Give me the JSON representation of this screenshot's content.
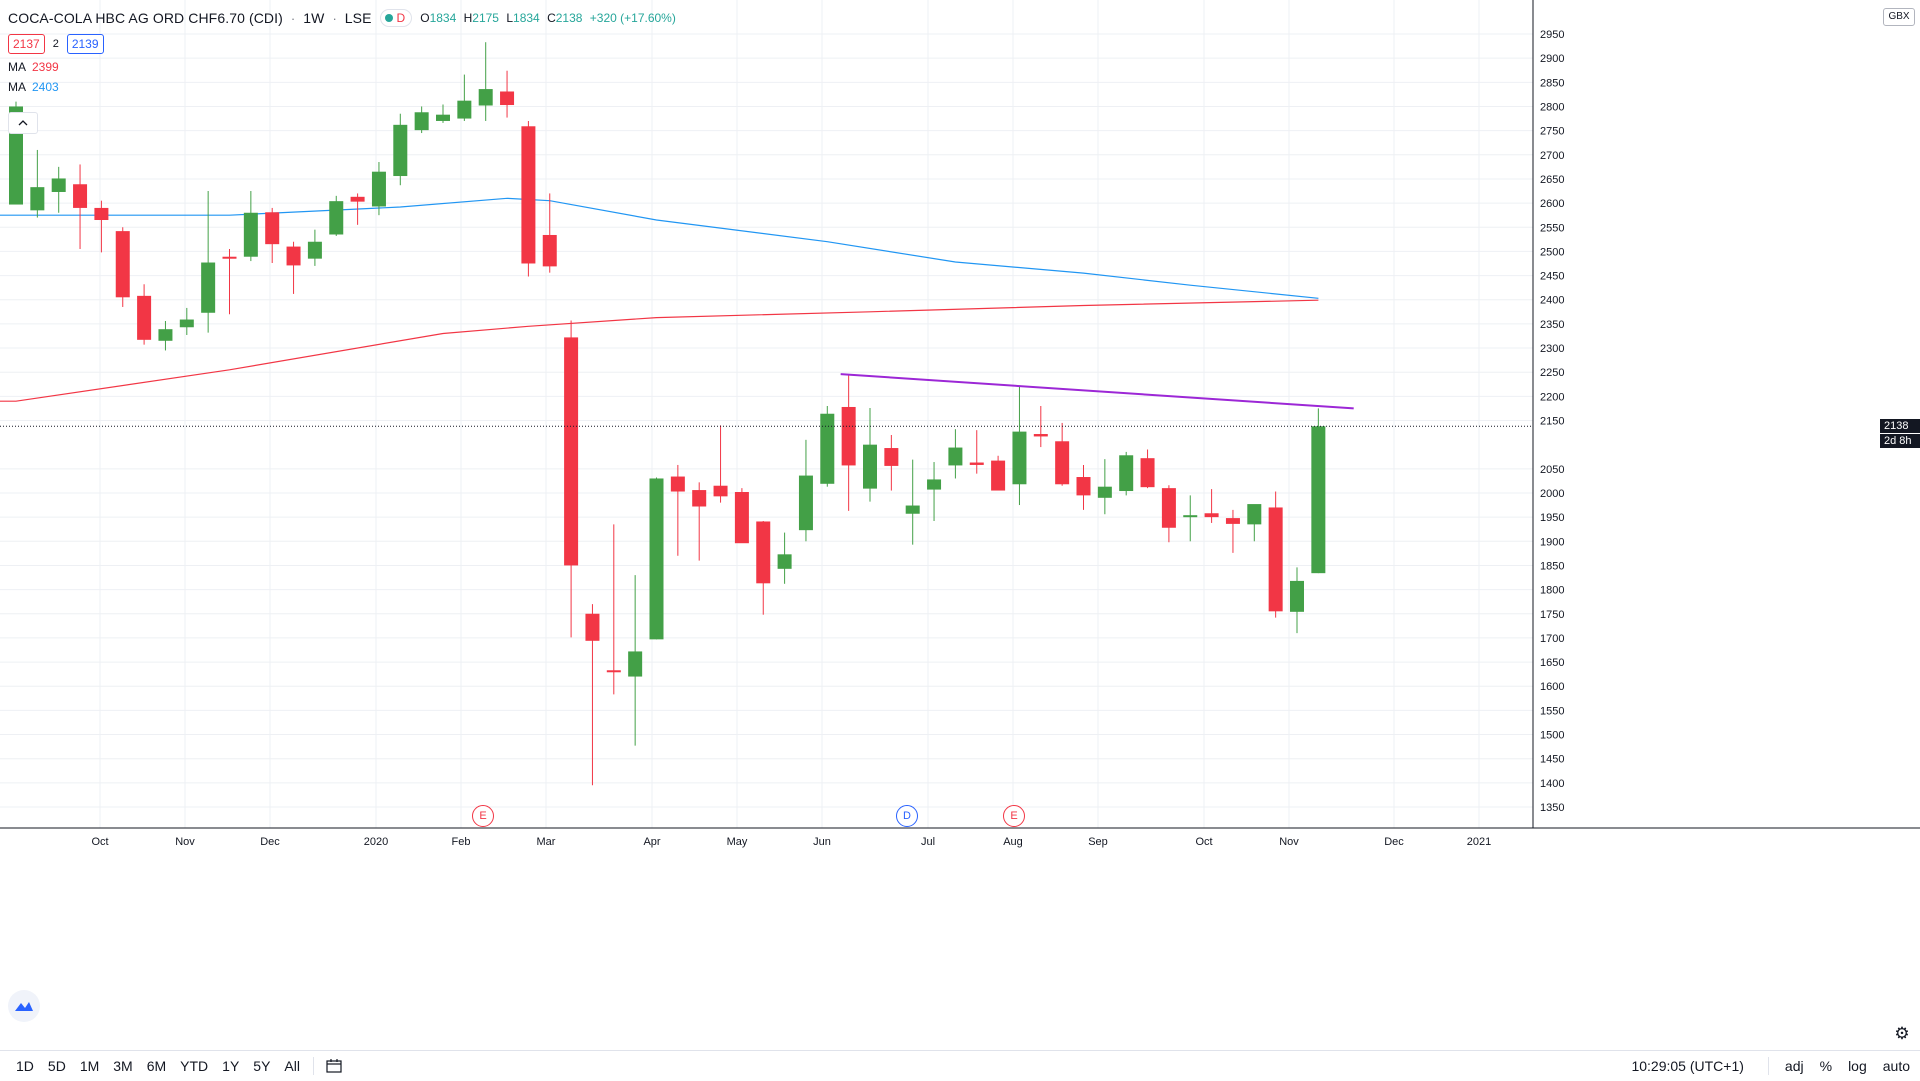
{
  "header": {
    "symbol_title": "COCA-COLA HBC AG ORD CHF6.70 (CDI)",
    "interval": "1W",
    "exchange": "LSE",
    "status_letter": "D",
    "ohlc": {
      "o_label": "O",
      "o_value": "1834",
      "h_label": "H",
      "h_value": "2175",
      "l_label": "L",
      "l_value": "1834",
      "c_label": "C",
      "c_value": "2138",
      "change": "+320 (+17.60%)"
    },
    "bid": "2137",
    "spread": "2",
    "ask": "2139",
    "ma1": {
      "label": "MA",
      "value": "2399",
      "color": "#f23645"
    },
    "ma2": {
      "label": "MA",
      "value": "2403",
      "color": "#2196f3"
    },
    "collapse_glyph": "^"
  },
  "price_axis": {
    "currency": "GBX",
    "last_price_label": "2138",
    "countdown_label": "2d 8h",
    "ticks": [
      "2950",
      "2900",
      "2850",
      "2800",
      "2750",
      "2700",
      "2650",
      "2600",
      "2550",
      "2500",
      "2450",
      "2400",
      "2350",
      "2300",
      "2250",
      "2200",
      "2150",
      "2050",
      "2000",
      "1950",
      "1900",
      "1850",
      "1800",
      "1750",
      "1700",
      "1650",
      "1600",
      "1550",
      "1500",
      "1450",
      "1400",
      "1350"
    ]
  },
  "time_axis": {
    "labels": [
      "Oct",
      "Nov",
      "Dec",
      "2020",
      "Feb",
      "Mar",
      "Apr",
      "May",
      "Jun",
      "Jul",
      "Aug",
      "Sep",
      "Oct",
      "Nov",
      "Dec",
      "2021"
    ]
  },
  "events": [
    {
      "letter": "E",
      "kind": "earnings"
    },
    {
      "letter": "D",
      "kind": "dividend"
    },
    {
      "letter": "E",
      "kind": "earnings"
    }
  ],
  "toolbar": {
    "timeframes": [
      "1D",
      "5D",
      "1M",
      "3M",
      "6M",
      "YTD",
      "1Y",
      "5Y",
      "All"
    ],
    "clock": "10:29:05 (UTC+1)",
    "adj": "adj",
    "percent": "%",
    "log": "log",
    "auto": "auto"
  },
  "colors": {
    "up": "#43a047",
    "down": "#f23645",
    "ma_red": "#f23645",
    "ma_blue": "#2196f3",
    "trendline": "#9c27d6",
    "grid": "#eef0f4"
  },
  "chart_data": {
    "type": "candlestick",
    "title": "COCA-COLA HBC AG ORD CHF6.70 (CDI)",
    "interval": "1W",
    "ylim": [
      1330,
      2960
    ],
    "y_unit": "GBX",
    "candles": [
      {
        "o": 2597,
        "h": 2810,
        "l": 2597,
        "c": 2800
      },
      {
        "o": 2585,
        "h": 2710,
        "l": 2570,
        "c": 2633
      },
      {
        "o": 2623,
        "h": 2675,
        "l": 2580,
        "c": 2651
      },
      {
        "o": 2639,
        "h": 2680,
        "l": 2505,
        "c": 2590
      },
      {
        "o": 2590,
        "h": 2605,
        "l": 2498,
        "c": 2565
      },
      {
        "o": 2542,
        "h": 2550,
        "l": 2385,
        "c": 2405
      },
      {
        "o": 2408,
        "h": 2432,
        "l": 2307,
        "c": 2317
      },
      {
        "o": 2315,
        "h": 2356,
        "l": 2295,
        "c": 2339
      },
      {
        "o": 2343,
        "h": 2383,
        "l": 2327,
        "c": 2359
      },
      {
        "o": 2373,
        "h": 2625,
        "l": 2332,
        "c": 2477
      },
      {
        "o": 2489,
        "h": 2505,
        "l": 2370,
        "c": 2485
      },
      {
        "o": 2489,
        "h": 2625,
        "l": 2480,
        "c": 2580
      },
      {
        "o": 2581,
        "h": 2590,
        "l": 2476,
        "c": 2515
      },
      {
        "o": 2510,
        "h": 2520,
        "l": 2412,
        "c": 2471
      },
      {
        "o": 2485,
        "h": 2545,
        "l": 2470,
        "c": 2520
      },
      {
        "o": 2535,
        "h": 2615,
        "l": 2532,
        "c": 2604
      },
      {
        "o": 2613,
        "h": 2620,
        "l": 2555,
        "c": 2603
      },
      {
        "o": 2593,
        "h": 2685,
        "l": 2575,
        "c": 2665
      },
      {
        "o": 2656,
        "h": 2785,
        "l": 2637,
        "c": 2762
      },
      {
        "o": 2751,
        "h": 2800,
        "l": 2745,
        "c": 2788
      },
      {
        "o": 2770,
        "h": 2804,
        "l": 2766,
        "c": 2783
      },
      {
        "o": 2775,
        "h": 2866,
        "l": 2770,
        "c": 2812
      },
      {
        "o": 2802,
        "h": 2933,
        "l": 2770,
        "c": 2836
      },
      {
        "o": 2831,
        "h": 2874,
        "l": 2777,
        "c": 2803
      },
      {
        "o": 2759,
        "h": 2770,
        "l": 2448,
        "c": 2475
      },
      {
        "o": 2534,
        "h": 2620,
        "l": 2456,
        "c": 2469
      },
      {
        "o": 2322,
        "h": 2357,
        "l": 1701,
        "c": 1850
      },
      {
        "o": 1750,
        "h": 1770,
        "l": 1395,
        "c": 1694
      },
      {
        "o": 1633,
        "h": 1935,
        "l": 1583,
        "c": 1630
      },
      {
        "o": 1620,
        "h": 1830,
        "l": 1477,
        "c": 1672
      },
      {
        "o": 1697,
        "h": 2032,
        "l": 1697,
        "c": 2030
      },
      {
        "o": 2034,
        "h": 2058,
        "l": 1870,
        "c": 2003
      },
      {
        "o": 2006,
        "h": 2022,
        "l": 1860,
        "c": 1972
      },
      {
        "o": 2015,
        "h": 2140,
        "l": 1980,
        "c": 1993
      },
      {
        "o": 2002,
        "h": 2010,
        "l": 1897,
        "c": 1896
      },
      {
        "o": 1941,
        "h": 1942,
        "l": 1748,
        "c": 1813
      },
      {
        "o": 1843,
        "h": 1918,
        "l": 1812,
        "c": 1873
      },
      {
        "o": 1923,
        "h": 2110,
        "l": 1900,
        "c": 2036
      },
      {
        "o": 2019,
        "h": 2180,
        "l": 2013,
        "c": 2164
      },
      {
        "o": 2178,
        "h": 2245,
        "l": 1963,
        "c": 2057
      },
      {
        "o": 2009,
        "h": 2176,
        "l": 1982,
        "c": 2100
      },
      {
        "o": 2093,
        "h": 2120,
        "l": 2005,
        "c": 2056
      },
      {
        "o": 1957,
        "h": 2069,
        "l": 1893,
        "c": 1974
      },
      {
        "o": 2007,
        "h": 2064,
        "l": 1942,
        "c": 2028
      },
      {
        "o": 2057,
        "h": 2132,
        "l": 2030,
        "c": 2094
      },
      {
        "o": 2063,
        "h": 2130,
        "l": 2040,
        "c": 2058
      },
      {
        "o": 2067,
        "h": 2077,
        "l": 2018,
        "c": 2005
      },
      {
        "o": 2018,
        "h": 2222,
        "l": 1975,
        "c": 2127
      },
      {
        "o": 2122,
        "h": 2180,
        "l": 2095,
        "c": 2117
      },
      {
        "o": 2107,
        "h": 2145,
        "l": 2015,
        "c": 2018
      },
      {
        "o": 2033,
        "h": 2058,
        "l": 1965,
        "c": 1995
      },
      {
        "o": 1990,
        "h": 2070,
        "l": 1956,
        "c": 2013
      },
      {
        "o": 2004,
        "h": 2085,
        "l": 1995,
        "c": 2078
      },
      {
        "o": 2072,
        "h": 2090,
        "l": 2010,
        "c": 2012
      },
      {
        "o": 2010,
        "h": 2016,
        "l": 1898,
        "c": 1928
      },
      {
        "o": 1951,
        "h": 1995,
        "l": 1900,
        "c": 1954
      },
      {
        "o": 1958,
        "h": 2008,
        "l": 1938,
        "c": 1950
      },
      {
        "o": 1948,
        "h": 1965,
        "l": 1876,
        "c": 1936
      },
      {
        "o": 1935,
        "h": 1975,
        "l": 1900,
        "c": 1977
      },
      {
        "o": 1970,
        "h": 2003,
        "l": 1742,
        "c": 1755
      },
      {
        "o": 1754,
        "h": 1846,
        "l": 1710,
        "c": 1818
      },
      {
        "o": 1834,
        "h": 2175,
        "l": 1834,
        "c": 2138
      }
    ],
    "ma_slow": {
      "name": "MA",
      "last": 2399,
      "points": [
        [
          0,
          2190
        ],
        [
          10,
          2255
        ],
        [
          20,
          2330
        ],
        [
          24,
          2345
        ],
        [
          30,
          2363
        ],
        [
          40,
          2375
        ],
        [
          50,
          2388
        ],
        [
          61,
          2399
        ]
      ]
    },
    "ma_fast": {
      "name": "MA",
      "last": 2403,
      "points": [
        [
          0,
          2575
        ],
        [
          10,
          2575
        ],
        [
          18,
          2592
        ],
        [
          23,
          2610
        ],
        [
          25,
          2605
        ],
        [
          30,
          2565
        ],
        [
          38,
          2520
        ],
        [
          44,
          2478
        ],
        [
          50,
          2455
        ],
        [
          55,
          2430
        ],
        [
          61,
          2403
        ]
      ]
    },
    "trendline": {
      "points": [
        [
          39,
          2246
        ],
        [
          62,
          2175
        ]
      ]
    },
    "last_price": 2138
  }
}
